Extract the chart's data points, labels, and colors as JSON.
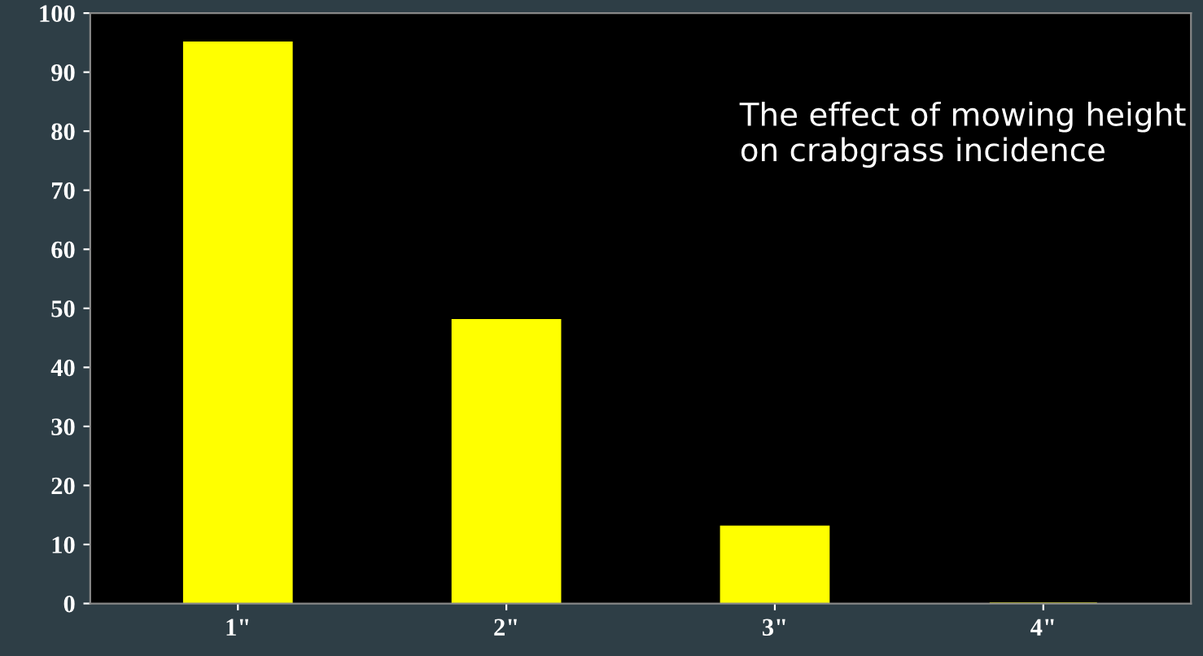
{
  "chart_data": {
    "type": "bar",
    "title": "The effect of mowing height\non crabgrass incidence",
    "categories": [
      "1\"",
      "2\"",
      "3\"",
      "4\""
    ],
    "values": [
      95,
      48,
      13,
      0
    ],
    "color": "#ffff00",
    "ylim": [
      0,
      100
    ],
    "yticks": [
      0,
      10,
      20,
      30,
      40,
      50,
      60,
      70,
      80,
      90,
      100
    ],
    "grid": false
  }
}
